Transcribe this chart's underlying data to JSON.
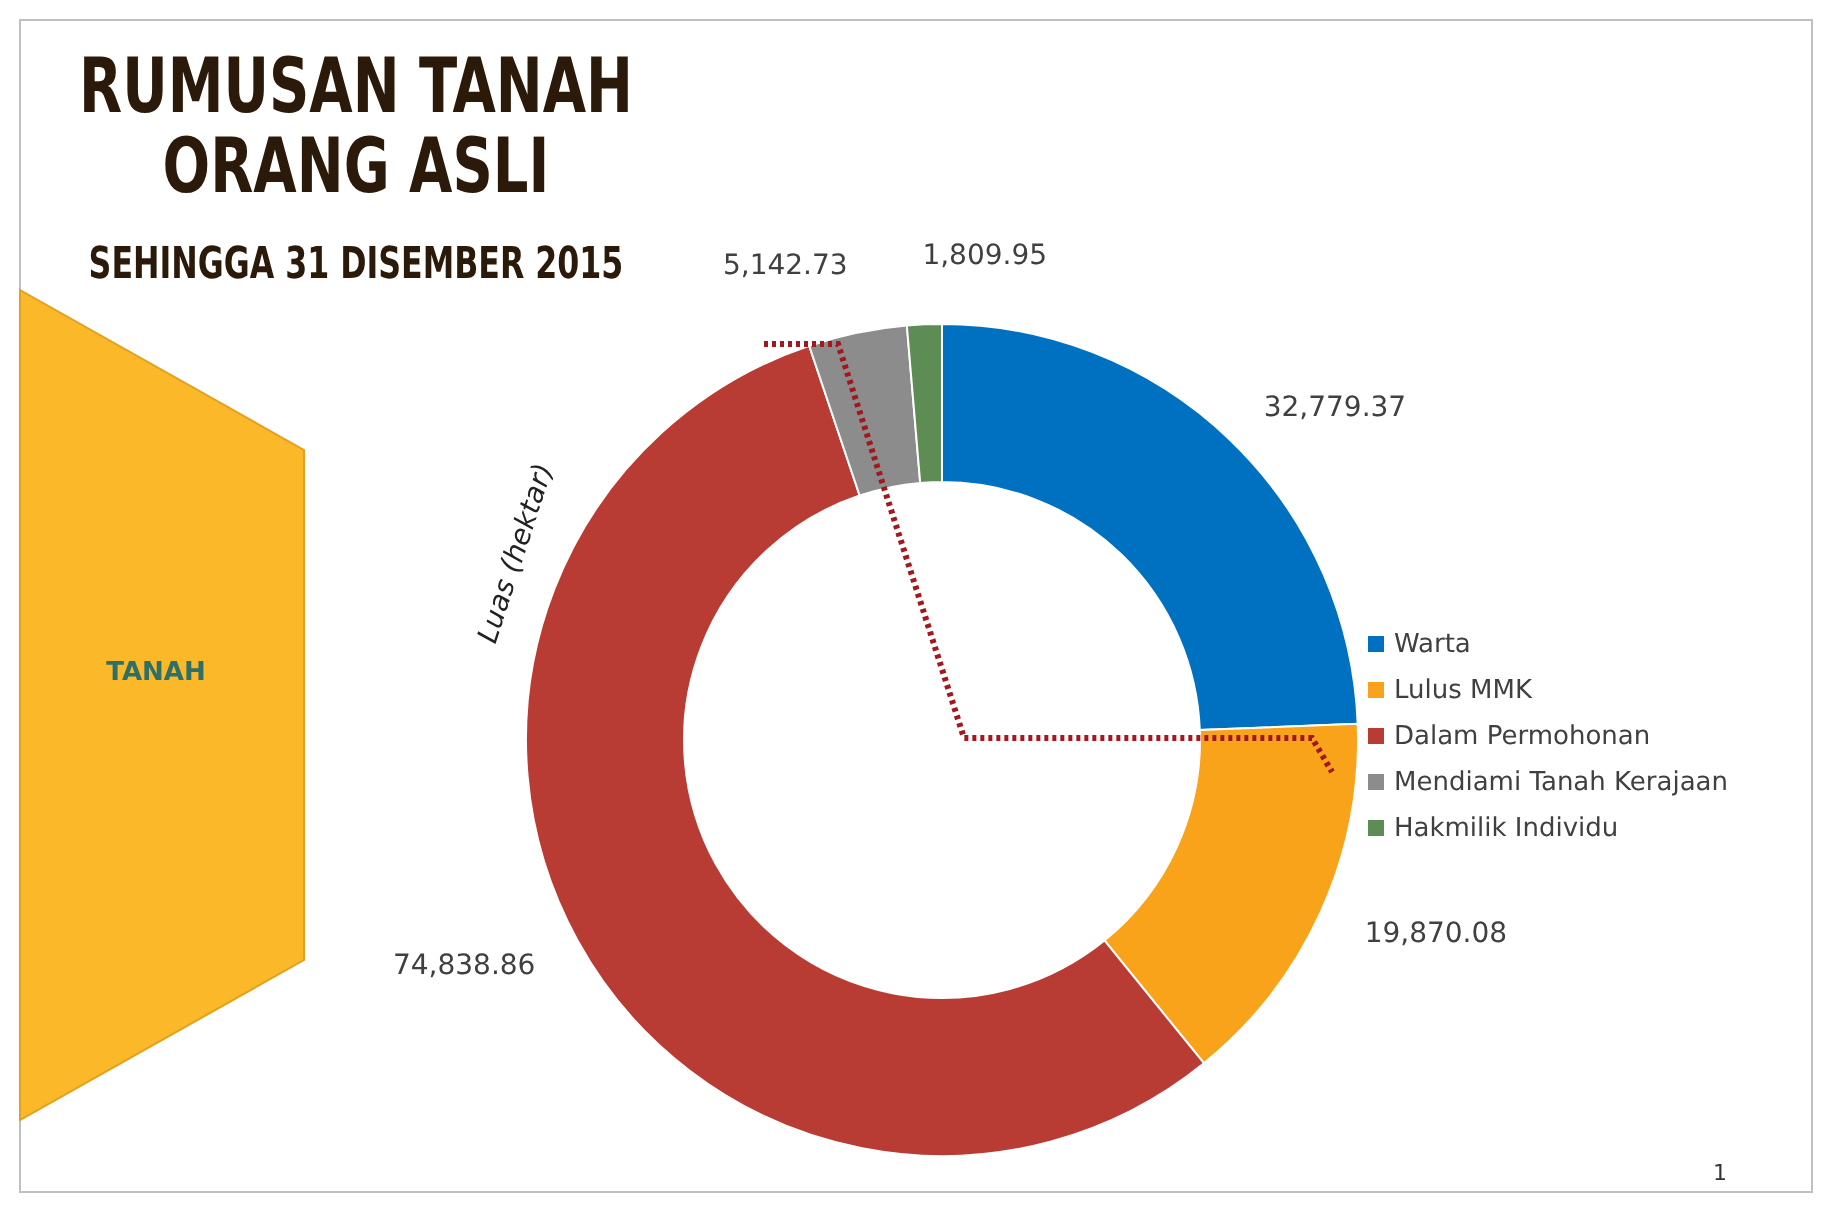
{
  "chart_data": {
    "type": "donut",
    "title": "RUMUSAN TANAH\nORANG ASLI",
    "subtitle": "SEHINGGA 31 DISEMBER 2015",
    "ylabel": "Luas (hektar)",
    "categories": [
      "Warta",
      "Lulus MMK",
      "Dalam Permohonan",
      "Mendiami Tanah Kerajaan",
      "Hakmilik Individu"
    ],
    "values": [
      32779.37,
      19870.08,
      74838.86,
      5142.73,
      1809.95
    ],
    "value_labels": [
      "32,779.37",
      "19,870.08",
      "74,838.86",
      "5,142.73",
      "1,809.95"
    ],
    "colors": [
      "#0070c0",
      "#f9a31b",
      "#b83c33",
      "#8c8c8c",
      "#5e8c55"
    ],
    "legend": "right",
    "annotations": [
      "TANAH",
      "1"
    ]
  }
}
